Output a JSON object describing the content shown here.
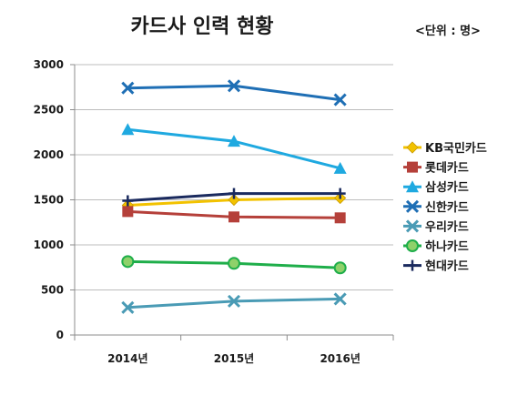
{
  "chart_data": {
    "type": "line",
    "title": "카드사 인력 현황",
    "unit_label": "<단위 : 명>",
    "xlabel": "",
    "ylabel": "",
    "x": [
      "2014년",
      "2015년",
      "2016년"
    ],
    "ylim": [
      0,
      3000
    ],
    "yticks": [
      "0",
      "500",
      "1000",
      "1500",
      "2000",
      "2500",
      "3000"
    ],
    "grid": true,
    "legend_position": "right",
    "series": [
      {
        "name": "KB국민카드",
        "values": [
          1440,
          1500,
          1520
        ],
        "color": "#f2c200",
        "marker": "diamond"
      },
      {
        "name": "롯데카드",
        "values": [
          1370,
          1310,
          1300
        ],
        "color": "#b5403a",
        "marker": "square"
      },
      {
        "name": "삼성카드",
        "values": [
          2280,
          2150,
          1850
        ],
        "color": "#1fa9e0",
        "marker": "triangle"
      },
      {
        "name": "신한카드",
        "values": [
          2740,
          2765,
          2610
        ],
        "color": "#1f6fb5",
        "marker": "x"
      },
      {
        "name": "우리카드",
        "values": [
          305,
          375,
          400
        ],
        "color": "#4a9bb5",
        "marker": "x"
      },
      {
        "name": "하나카드",
        "values": [
          815,
          795,
          745
        ],
        "color": "#1fae4a",
        "marker": "circle"
      },
      {
        "name": "현대카드",
        "values": [
          1490,
          1570,
          1570
        ],
        "color": "#1a2a5e",
        "marker": "plus"
      }
    ]
  }
}
